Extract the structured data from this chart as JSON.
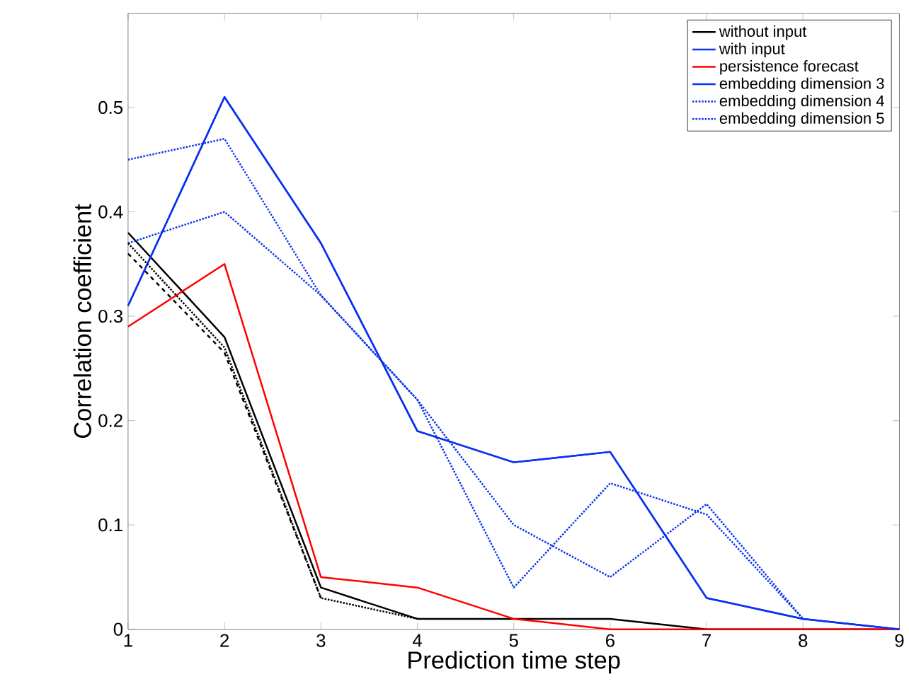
{
  "chart_data": {
    "type": "line",
    "xlabel": "Prediction time step",
    "ylabel": "Correlation coefficient",
    "x": [
      1,
      2,
      3,
      4,
      5,
      6,
      7,
      8,
      9
    ],
    "xlim": [
      1,
      9
    ],
    "xticks": [
      1,
      2,
      3,
      4,
      5,
      6,
      7,
      8,
      9
    ],
    "ylim": [
      0,
      0.59
    ],
    "yticks": [
      0,
      0.1,
      0.2,
      0.3,
      0.4,
      0.5
    ],
    "grid": false,
    "legend": "top right",
    "marker": "none",
    "series": [
      {
        "name": "without input",
        "color": "#000000",
        "line_style": "solid",
        "values": [
          0.38,
          0.28,
          0.04,
          0.01,
          0.01,
          0.01,
          0,
          0,
          0
        ]
      },
      {
        "name": "with input",
        "color": "#0a32f0",
        "line_style": "solid",
        "values": [
          0.31,
          0.51,
          0.37,
          0.19,
          0.16,
          0.17,
          0.03,
          0.01,
          0
        ]
      },
      {
        "name": "persistence forecast",
        "color": "#ff0000",
        "line_style": "solid",
        "values": [
          0.29,
          0.35,
          0.05,
          0.04,
          0.01,
          0,
          0,
          0,
          0
        ]
      },
      {
        "name": "embedding dimension 3",
        "color": "#0a32f0",
        "line_style": "solid",
        "values": [
          0.31,
          0.51,
          0.37,
          0.19,
          0.16,
          0.17,
          0.03,
          0.01,
          0
        ]
      },
      {
        "name": "embedding dimension 4",
        "color": "#0a32f0",
        "line_style": "dotted",
        "values": [
          0.45,
          0.47,
          0.32,
          0.22,
          0.04,
          0.14,
          0.11,
          0.01,
          null
        ]
      },
      {
        "name": "embedding dimension 5",
        "color": "#0a32f0",
        "line_style": "dotted",
        "values": [
          0.37,
          0.4,
          0.32,
          0.22,
          0.1,
          0.05,
          0.12,
          0.01,
          null
        ]
      },
      {
        "color": "#000000",
        "line_style": "dotted",
        "values": [
          0.37,
          0.27,
          0.03,
          0.01,
          null,
          null,
          null,
          null,
          null
        ]
      },
      {
        "color": "#000000",
        "line_style": "dashed",
        "values": [
          0.36,
          0.265,
          0.03,
          null,
          null,
          null,
          null,
          null,
          null
        ]
      }
    ]
  }
}
